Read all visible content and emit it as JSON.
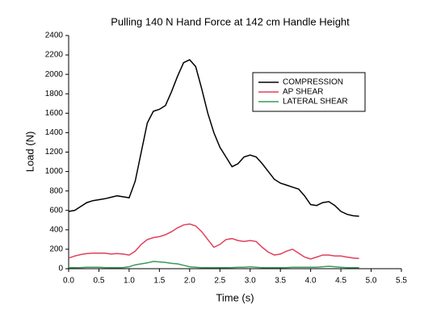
{
  "chart_data": {
    "type": "line",
    "title": "Pulling 140 N Hand Force at 142 cm Handle Height",
    "x_label": "Time (s)",
    "y_label": "Load (N)",
    "x": [
      0,
      0.1,
      0.2,
      0.3,
      0.4,
      0.5,
      0.6,
      0.7,
      0.8,
      0.9,
      1.0,
      1.1,
      1.2,
      1.3,
      1.4,
      1.5,
      1.6,
      1.7,
      1.8,
      1.9,
      2.0,
      2.1,
      2.2,
      2.3,
      2.4,
      2.5,
      2.6,
      2.7,
      2.8,
      2.9,
      3.0,
      3.1,
      3.2,
      3.3,
      3.4,
      3.5,
      3.6,
      3.7,
      3.8,
      3.9,
      4.0,
      4.1,
      4.2,
      4.3,
      4.4,
      4.5,
      4.6,
      4.7,
      4.8
    ],
    "series": [
      {
        "name": "COMPRESSION",
        "color": "#000000",
        "values": [
          590,
          600,
          640,
          680,
          700,
          710,
          720,
          735,
          750,
          740,
          730,
          900,
          1200,
          1500,
          1620,
          1640,
          1680,
          1820,
          1980,
          2120,
          2150,
          2080,
          1850,
          1600,
          1400,
          1250,
          1150,
          1050,
          1080,
          1150,
          1170,
          1150,
          1080,
          1000,
          920,
          880,
          860,
          840,
          820,
          750,
          660,
          650,
          680,
          690,
          650,
          590,
          560,
          545,
          540
        ]
      },
      {
        "name": "AP SHEAR",
        "color": "#e0405a",
        "values": [
          110,
          130,
          145,
          155,
          160,
          160,
          160,
          150,
          155,
          150,
          140,
          180,
          250,
          300,
          320,
          330,
          350,
          380,
          420,
          450,
          460,
          440,
          380,
          300,
          220,
          250,
          300,
          310,
          290,
          280,
          290,
          280,
          220,
          170,
          140,
          150,
          180,
          200,
          160,
          120,
          100,
          120,
          140,
          140,
          130,
          130,
          120,
          110,
          105
        ]
      },
      {
        "name": "LATERAL SHEAR",
        "color": "#3a9a5a",
        "values": [
          10,
          10,
          12,
          15,
          15,
          15,
          12,
          10,
          10,
          12,
          20,
          40,
          50,
          60,
          75,
          70,
          65,
          55,
          50,
          35,
          20,
          15,
          10,
          10,
          10,
          10,
          10,
          12,
          15,
          15,
          20,
          15,
          10,
          10,
          10,
          10,
          12,
          15,
          15,
          15,
          15,
          15,
          20,
          25,
          20,
          15,
          10,
          10,
          10
        ]
      }
    ],
    "xlim": [
      0,
      5.5
    ],
    "xticks": [
      {
        "value": 0,
        "label": "0.0"
      },
      0.5,
      {
        "value": 1,
        "label": "1.0"
      },
      1.5,
      {
        "value": 2,
        "label": "2.0"
      },
      2.5,
      {
        "value": 3,
        "label": "3.0"
      },
      3.5,
      {
        "value": 4,
        "label": "4.0"
      },
      4.5,
      {
        "value": 5,
        "label": "5.0"
      },
      5.5
    ],
    "ylim": [
      0,
      2400
    ],
    "yticks": [
      0,
      200,
      400,
      600,
      800,
      1000,
      1200,
      1400,
      1600,
      1800,
      2000,
      2200,
      2400
    ],
    "grid": false,
    "legend": "upper right"
  }
}
